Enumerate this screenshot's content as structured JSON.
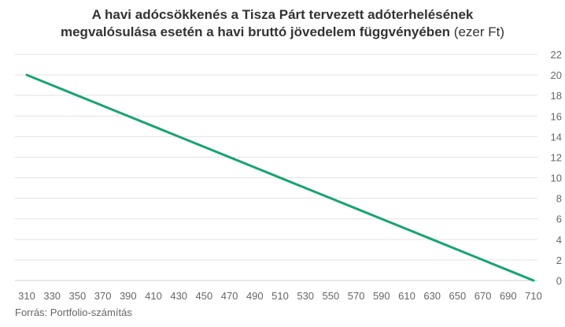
{
  "chart_data": {
    "type": "line",
    "title_bold_line1": "A havi adócsökkenés a Tisza Párt tervezett adóterhelésének",
    "title_bold_line2": "megvalósulása esetén a havi bruttó jövedelem függvényében",
    "title_unit": "(ezer Ft)",
    "x_ticks": [
      310,
      330,
      350,
      370,
      390,
      410,
      430,
      450,
      470,
      490,
      510,
      530,
      550,
      570,
      590,
      610,
      630,
      650,
      670,
      690,
      710
    ],
    "y_ticks": [
      0,
      2,
      4,
      6,
      8,
      10,
      12,
      14,
      16,
      18,
      20,
      22
    ],
    "xlim": [
      310,
      710
    ],
    "ylim": [
      0,
      22
    ],
    "grid": "horizontal",
    "y_axis_side": "right",
    "line_color": "#1aa371",
    "series": [
      {
        "x": [
          310,
          330,
          350,
          370,
          390,
          410,
          430,
          450,
          470,
          490,
          510,
          530,
          550,
          570,
          590,
          610,
          630,
          650,
          670,
          690,
          710
        ],
        "values": [
          20,
          19,
          18,
          17,
          16,
          15,
          14,
          13,
          12,
          11,
          10,
          9,
          8,
          7,
          6,
          5,
          4,
          3,
          2,
          1,
          0
        ]
      }
    ]
  },
  "source": "Forrás: Portfolio-számítás"
}
